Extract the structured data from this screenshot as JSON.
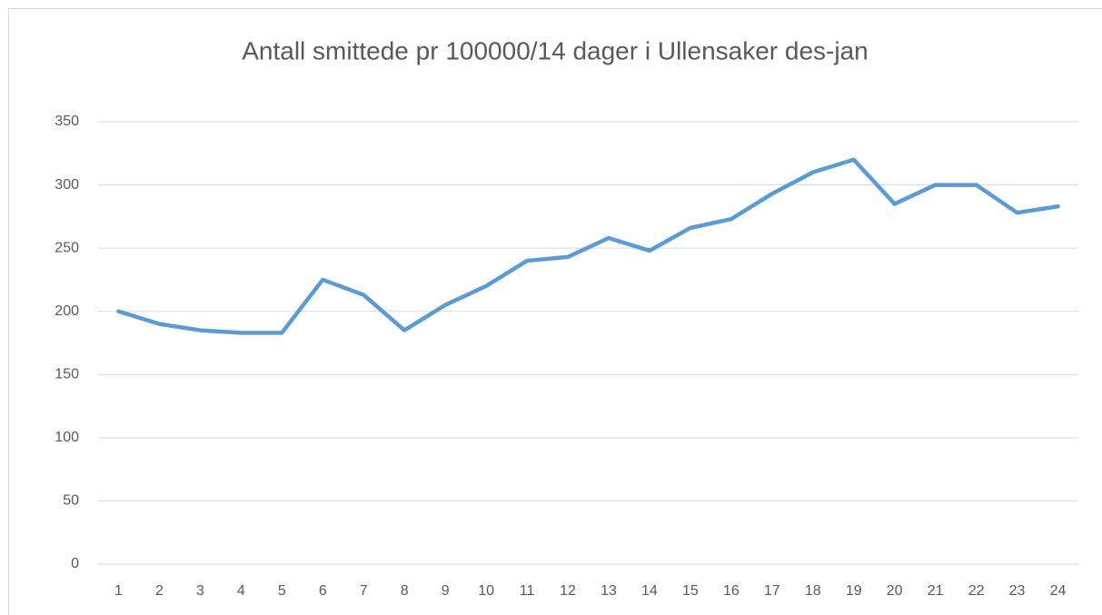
{
  "chart_data": {
    "type": "line",
    "title": "Antall smittede pr 100000/14 dager i Ullensaker des-jan",
    "categories": [
      "1",
      "2",
      "3",
      "4",
      "5",
      "6",
      "7",
      "8",
      "9",
      "10",
      "11",
      "12",
      "13",
      "14",
      "15",
      "16",
      "17",
      "18",
      "19",
      "20",
      "21",
      "22",
      "23",
      "24"
    ],
    "series": [
      {
        "name": "Antall smittede",
        "color": "#5b9bd5",
        "values": [
          200,
          190,
          185,
          183,
          183,
          225,
          213,
          185,
          205,
          220,
          240,
          243,
          258,
          248,
          266,
          273,
          293,
          310,
          320,
          285,
          300,
          300,
          278,
          283
        ]
      }
    ],
    "ylim": [
      0,
      350
    ],
    "yticks": [
      0,
      50,
      100,
      150,
      200,
      250,
      300,
      350
    ],
    "grid": true
  }
}
